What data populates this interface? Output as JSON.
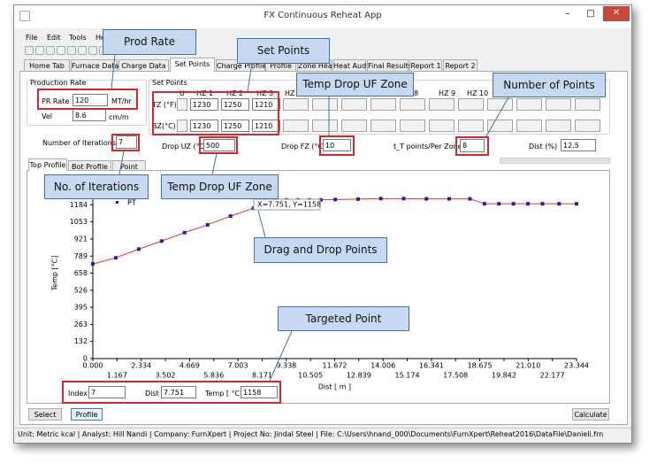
{
  "window": {
    "title": "FX Continuous Reheat App"
  },
  "menu": [
    "File",
    "Edit",
    "Tools",
    "Help"
  ],
  "tabs": [
    "Home Tab",
    "Furnace Data",
    "Charge Data",
    "Set Points",
    "Charge Profile",
    "Profile",
    "Zone Heat",
    "Heat Audit",
    "Final Results",
    "Report 1",
    "Report 2"
  ],
  "production_rate": {
    "title": "Production Rate",
    "pr_rate_label": "PR Rate",
    "pr_rate": 120,
    "pr_rate_unit": "MT/hr",
    "vel_label": "Vel",
    "vel": 8.6,
    "vel_unit": "cm/m"
  },
  "set_points": {
    "title": "Set Points",
    "columns": [
      "U",
      "HZ 1",
      "HZ 2",
      "HZ 3",
      "HZ",
      "8",
      "HZ 9",
      "HZ 10"
    ],
    "rows": [
      {
        "label": "TZ (°F)",
        "values": [
          1230,
          1250,
          1210
        ]
      },
      {
        "label": "BZ(°C)",
        "values": [
          1230,
          1250,
          1210
        ]
      }
    ]
  },
  "iterations": {
    "label": "Number of Iterations",
    "value": 7
  },
  "drop_uz": {
    "label": "Drop UZ (°C",
    "value": 500
  },
  "drop_fz": {
    "label": "Drop FZ (°C)",
    "value": 10
  },
  "points_per_zone": {
    "label": "t_T points/Per Zone",
    "value": 8
  },
  "dist": {
    "label": "Dist (%)",
    "value": 12.5
  },
  "chart_tabs": [
    "Top Profile",
    "Bot Profile",
    "Point"
  ],
  "chart_data": {
    "type": "line",
    "y_label": "Temp [°C]",
    "x_label": "Dist [ m ]",
    "tooltip": "X=7.751, Y=1158",
    "x": [
      0,
      1.107,
      2.215,
      3.322,
      4.429,
      5.537,
      6.644,
      7.751,
      8.8,
      9.35,
      9.9,
      10.45,
      11.0,
      11.7,
      12.8,
      13.9,
      15.0,
      16.1,
      17.2,
      18.2,
      18.9,
      19.6,
      20.3,
      21.0,
      21.7,
      22.5,
      23.344
    ],
    "series": [
      {
        "name": "PT",
        "color": "#e8302a",
        "marker_color": "#1f1fbf",
        "values": [
          729,
          776,
          843,
          905,
          970,
          1030,
          1097,
          1158,
          1222,
          1222,
          1222,
          1222,
          1222,
          1225,
          1228,
          1232,
          1232,
          1230,
          1230,
          1230,
          1192,
          1192,
          1192,
          1192,
          1192,
          1192,
          1192
        ]
      }
    ],
    "xlim": [
      0,
      23.344
    ],
    "ylim": [
      0,
      1316
    ],
    "xticks": [
      {
        "value": 0,
        "label": "0.000"
      },
      1.167,
      2.334,
      3.502,
      4.669,
      5.836,
      7.003,
      8.171,
      9.338,
      10.505,
      11.672,
      12.839,
      14.006,
      15.174,
      16.341,
      17.508,
      18.675,
      19.842,
      {
        "value": 21.01,
        "label": "21.010"
      },
      22.177,
      23.344
    ],
    "yticks": [
      0,
      132,
      263,
      395,
      526,
      658,
      789,
      921,
      1053,
      1184
    ]
  },
  "target": {
    "index_label": "Index",
    "index": 7,
    "dist_label": "Dist [ m ]",
    "dist": 7.751,
    "temp_label": "Temp [ °C ]",
    "temp": 1158
  },
  "buttons": [
    "Select",
    "Profile",
    "Calculate"
  ],
  "status_bar": "Unit:  Metric kcal  | Analyst: Hill Nandi  | Company: FurnXpert  | Project No: Jindal Steel  | File: C:\\Users\\hnand_000\\Documents\\FurnXpert\\Reheat2016\\DataFile\\Danieli.frn",
  "callouts": [
    "Prod Rate",
    "Set Points",
    "Temp Drop UF Zone",
    "Number of Points",
    "No. of Iterations",
    "Temp Drop UF Zone",
    "Drag and Drop Points",
    "Targeted Point"
  ]
}
